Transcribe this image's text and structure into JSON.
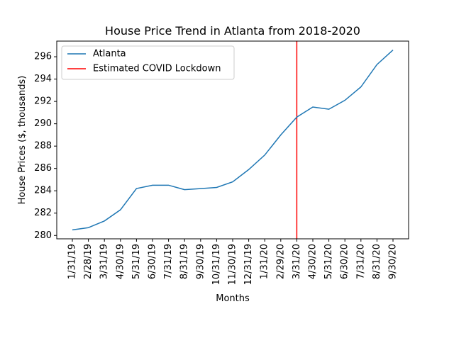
{
  "chart_data": {
    "type": "line",
    "title": "House Price Trend in Atlanta from 2018-2020",
    "xlabel": "Months",
    "ylabel": "House Prices ($, thousands)",
    "categories": [
      "1/31/19",
      "2/28/19",
      "3/31/19",
      "4/30/19",
      "5/31/19",
      "6/30/19",
      "7/31/19",
      "8/31/19",
      "9/30/19",
      "10/31/19",
      "11/30/19",
      "12/31/19",
      "1/31/20",
      "2/29/20",
      "3/31/20",
      "4/30/20",
      "5/31/20",
      "6/30/20",
      "7/31/20",
      "8/31/20",
      "9/30/20"
    ],
    "series": [
      {
        "name": "Atlanta",
        "color": "#1f77b4",
        "values": [
          280.5,
          280.7,
          281.3,
          282.3,
          284.2,
          284.5,
          284.5,
          284.1,
          284.2,
          284.3,
          284.8,
          285.9,
          287.2,
          289.0,
          290.6,
          291.5,
          291.3,
          292.1,
          293.3,
          295.3,
          296.6
        ]
      }
    ],
    "vline": {
      "name": "Estimated COVID Lockdown",
      "color": "#ff0000",
      "x": "3/31/20"
    },
    "ylim": [
      279.7,
      297.4
    ],
    "yticks": [
      280,
      282,
      284,
      286,
      288,
      290,
      292,
      294,
      296
    ],
    "grid": false,
    "legend_position": "upper left"
  }
}
